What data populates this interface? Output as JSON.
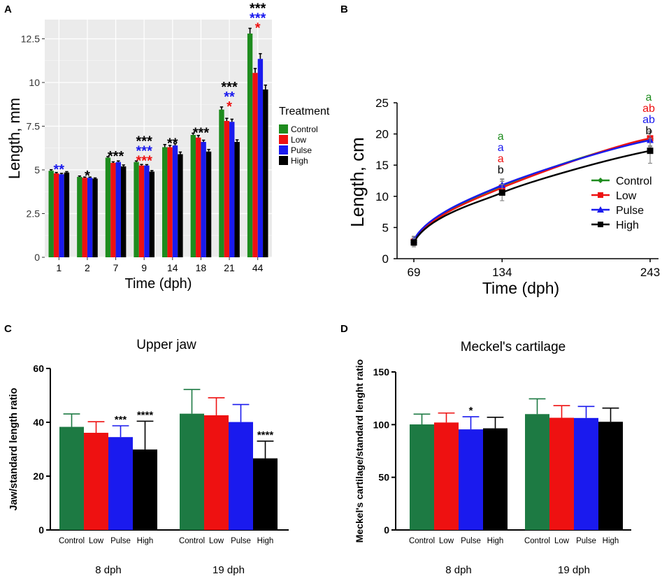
{
  "colors": {
    "Control": "#1e8c1e",
    "Low": "#ee1111",
    "Pulse": "#1a1aee",
    "High": "#000000",
    "ControlBarD": "#1d7a43",
    "panelA_bg": "#ebebeb",
    "grid": "#ffffff"
  },
  "chart_data": [
    {
      "panel": "A",
      "type": "bar",
      "xlabel": "Time (dph)",
      "ylabel": "Length, mm",
      "ylim": [
        0,
        13.6
      ],
      "yticks": [
        "0",
        "2.5",
        "5",
        "7.5",
        "10",
        "12.5"
      ],
      "ytick_values": [
        0,
        2.5,
        5,
        7.5,
        10,
        12.5
      ],
      "legend_title": "Treatment",
      "categories": [
        "1",
        "2",
        "7",
        "9",
        "14",
        "18",
        "21",
        "44"
      ],
      "series": [
        {
          "name": "Control",
          "values": [
            4.95,
            4.6,
            5.7,
            5.45,
            6.3,
            7.0,
            8.45,
            12.8
          ],
          "errors": [
            0.06,
            0.05,
            0.06,
            0.06,
            0.15,
            0.1,
            0.15,
            0.3
          ]
        },
        {
          "name": "Low",
          "values": [
            4.8,
            4.55,
            5.4,
            5.25,
            6.3,
            6.85,
            7.8,
            10.55
          ],
          "errors": [
            0.05,
            0.04,
            0.06,
            0.06,
            0.1,
            0.12,
            0.15,
            0.25
          ]
        },
        {
          "name": "Pulse",
          "values": [
            4.75,
            4.55,
            5.45,
            5.25,
            6.4,
            6.6,
            7.75,
            11.35
          ],
          "errors": [
            0.05,
            0.04,
            0.06,
            0.05,
            0.1,
            0.1,
            0.15,
            0.3
          ]
        },
        {
          "name": "High",
          "values": [
            4.85,
            4.5,
            5.2,
            4.9,
            5.9,
            6.05,
            6.6,
            9.6
          ],
          "errors": [
            0.05,
            0.04,
            0.08,
            0.06,
            0.12,
            0.12,
            0.12,
            0.25
          ]
        }
      ],
      "annotations": [
        {
          "category": "1",
          "lines": [
            {
              "text": "**",
              "color": "Pulse"
            }
          ]
        },
        {
          "category": "2",
          "lines": [
            {
              "text": "*",
              "color": "High"
            }
          ]
        },
        {
          "category": "7",
          "lines": [
            {
              "text": "***",
              "color": "High"
            }
          ]
        },
        {
          "category": "9",
          "lines": [
            {
              "text": "***",
              "color": "High"
            },
            {
              "text": "***",
              "color": "Pulse"
            },
            {
              "text": "***",
              "color": "Low"
            }
          ]
        },
        {
          "category": "14",
          "lines": [
            {
              "text": "**",
              "color": "High"
            }
          ]
        },
        {
          "category": "18",
          "lines": [
            {
              "text": "***",
              "color": "High"
            }
          ]
        },
        {
          "category": "21",
          "lines": [
            {
              "text": "***",
              "color": "High"
            },
            {
              "text": "**",
              "color": "Pulse"
            },
            {
              "text": "*",
              "color": "Low"
            }
          ]
        },
        {
          "category": "44",
          "lines": [
            {
              "text": "***",
              "color": "High"
            },
            {
              "text": "***",
              "color": "Pulse"
            },
            {
              "text": "*",
              "color": "Low"
            }
          ]
        }
      ]
    },
    {
      "panel": "B",
      "type": "line",
      "xlabel": "Time (dph)",
      "ylabel": "Length, cm",
      "x": [
        69,
        134,
        243
      ],
      "xticks": [
        "69",
        "134",
        "243"
      ],
      "ylim": [
        0,
        25
      ],
      "yticks": [
        "0",
        "5",
        "10",
        "15",
        "20",
        "25"
      ],
      "series": [
        {
          "name": "Control",
          "values": [
            2.9,
            11.7,
            19.2
          ],
          "errors": [
            0.6,
            1.0,
            1.2
          ]
        },
        {
          "name": "Low",
          "values": [
            2.7,
            11.4,
            19.3
          ],
          "errors": [
            0.6,
            1.0,
            1.2
          ]
        },
        {
          "name": "Pulse",
          "values": [
            3.0,
            11.8,
            19.0
          ],
          "errors": [
            0.6,
            1.0,
            1.2
          ]
        },
        {
          "name": "High",
          "values": [
            2.6,
            10.6,
            17.3
          ],
          "errors": [
            0.7,
            1.3,
            2.0
          ]
        }
      ],
      "annotations": [
        {
          "x": 134,
          "letters": [
            {
              "text": "a",
              "color": "Control"
            },
            {
              "text": "a",
              "color": "Pulse"
            },
            {
              "text": "a",
              "color": "Low"
            },
            {
              "text": "b",
              "color": "High"
            }
          ]
        },
        {
          "x": 243,
          "letters": [
            {
              "text": "a",
              "color": "Control"
            },
            {
              "text": "ab",
              "color": "Low"
            },
            {
              "text": "ab",
              "color": "Pulse"
            },
            {
              "text": "b",
              "color": "High"
            }
          ]
        }
      ]
    },
    {
      "panel": "C",
      "type": "bar",
      "title": "Upper jaw",
      "ylabel": "Jaw/standard length ratio",
      "ylim": [
        0,
        60
      ],
      "yticks": [
        "0",
        "20",
        "40",
        "60"
      ],
      "ytick_values": [
        0,
        20,
        40,
        60
      ],
      "groups": [
        "8 dph",
        "19 dph"
      ],
      "bar_labels": [
        "Control",
        "Low",
        "Pulse",
        "High"
      ],
      "series": [
        {
          "name": "Control",
          "values": [
            38.3,
            43.2
          ],
          "errors": [
            4.8,
            9.0
          ]
        },
        {
          "name": "Low",
          "values": [
            36.1,
            42.6
          ],
          "errors": [
            4.1,
            6.5
          ]
        },
        {
          "name": "Pulse",
          "values": [
            34.5,
            40.1
          ],
          "errors": [
            4.2,
            6.5
          ]
        },
        {
          "name": "High",
          "values": [
            29.9,
            26.6
          ],
          "errors": [
            10.5,
            6.4
          ]
        }
      ],
      "annotations": [
        {
          "group": "8 dph",
          "series": "Pulse",
          "text": "***"
        },
        {
          "group": "8 dph",
          "series": "High",
          "text": "****"
        },
        {
          "group": "19 dph",
          "series": "High",
          "text": "****"
        }
      ]
    },
    {
      "panel": "D",
      "type": "bar",
      "title": "Meckel's cartilage",
      "ylabel": "Meckel's cartilage/standard lenght ratio",
      "ylim": [
        0,
        150
      ],
      "yticks": [
        "0",
        "50",
        "100",
        "150"
      ],
      "ytick_values": [
        0,
        50,
        100,
        150
      ],
      "groups": [
        "8 dph",
        "19 dph"
      ],
      "bar_labels": [
        "Control",
        "Low",
        "Pulse",
        "High"
      ],
      "series": [
        {
          "name": "Control",
          "values": [
            100.2,
            110.0
          ],
          "errors": [
            9.8,
            14.5
          ]
        },
        {
          "name": "Low",
          "values": [
            102.0,
            106.5
          ],
          "errors": [
            9.0,
            11.5
          ]
        },
        {
          "name": "Pulse",
          "values": [
            95.5,
            106.3
          ],
          "errors": [
            12.0,
            11.0
          ]
        },
        {
          "name": "High",
          "values": [
            96.5,
            102.7
          ],
          "errors": [
            10.5,
            13.0
          ]
        }
      ],
      "annotations": [
        {
          "group": "8 dph",
          "series": "Pulse",
          "text": "*"
        }
      ]
    }
  ],
  "panel_labels": {
    "a": "A",
    "b": "B",
    "c": "C",
    "d": "D"
  }
}
